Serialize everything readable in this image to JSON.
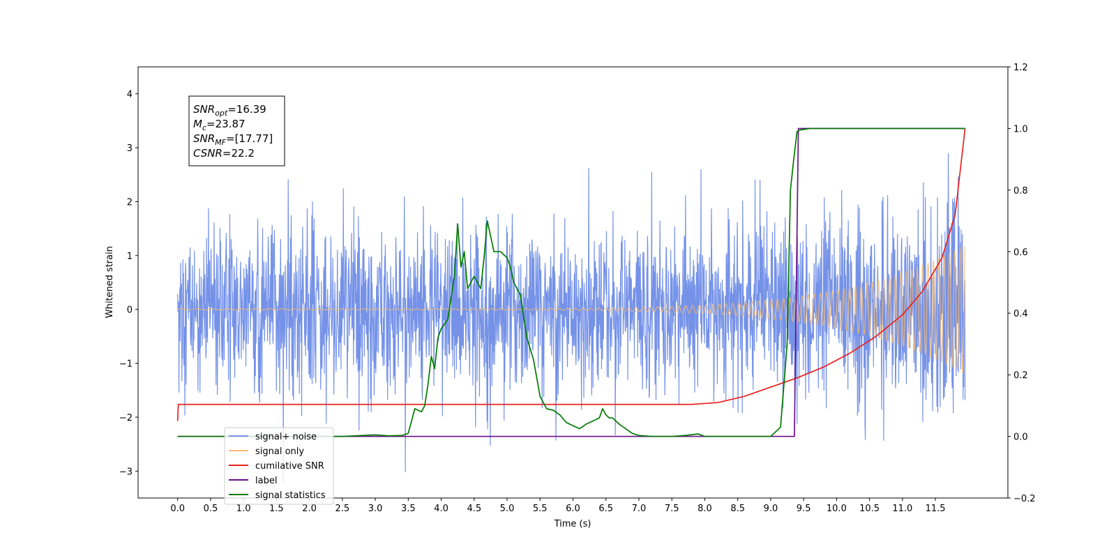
{
  "chart_data": {
    "type": "line",
    "xlabel": "Time (s)",
    "ylabel_left": "Whitened strain",
    "ylabel_right": "",
    "xlim": [
      -0.6,
      12.6
    ],
    "ylim_left": [
      -3.5,
      4.5
    ],
    "ylim_right": [
      -0.2,
      1.2
    ],
    "x_ticks": [
      "0.0",
      "0.5",
      "1.0",
      "1.5",
      "2.0",
      "2.5",
      "3.0",
      "3.5",
      "4.0",
      "4.5",
      "5.0",
      "5.5",
      "6.0",
      "6.5",
      "7.0",
      "7.5",
      "8.0",
      "8.5",
      "9.0",
      "9.5",
      "10.0",
      "10.5",
      "11.0",
      "11.5"
    ],
    "y_ticks_left": [
      "−3",
      "−2",
      "−1",
      "0",
      "1",
      "2",
      "3",
      "4"
    ],
    "y_ticks_right": [
      "−0.2",
      "0.0",
      "0.2",
      "0.4",
      "0.6",
      "0.8",
      "1.0",
      "1.2"
    ],
    "grid": false,
    "legend_position": "lower-left",
    "annotation": {
      "lines": [
        {
          "main": "SNR",
          "sub": "opt",
          "value": "=16.39"
        },
        {
          "main": "M",
          "sub": "c",
          "value": "=23.87"
        },
        {
          "main": "SNR",
          "sub": "MF",
          "value": "=[17.77]"
        },
        {
          "main": "CSNR",
          "sub": "",
          "value": "=22.2"
        }
      ]
    },
    "series": [
      {
        "name": "signal+ noise",
        "axis": "left",
        "color": "#7592e8",
        "style": "noise",
        "x_range": [
          0.0,
          11.95
        ],
        "std": 0.75,
        "chirp_growth_amplitude": 1.2
      },
      {
        "name": "signal only",
        "axis": "left",
        "color": "#f5b870",
        "style": "chirp",
        "x_range": [
          0.0,
          11.95
        ],
        "max_amplitude": 1.2
      },
      {
        "name": "cumilative SNR",
        "axis": "right",
        "color": "#e8211e",
        "x": [
          0.0,
          0.01,
          7.8,
          8.2,
          8.6,
          9.0,
          9.4,
          9.8,
          10.2,
          10.6,
          11.0,
          11.3,
          11.6,
          11.8,
          11.95
        ],
        "values": [
          0.05,
          0.104,
          0.104,
          0.11,
          0.13,
          0.16,
          0.19,
          0.225,
          0.27,
          0.325,
          0.395,
          0.47,
          0.58,
          0.72,
          1.0
        ]
      },
      {
        "name": "label",
        "axis": "right",
        "color": "#6a0f8a",
        "x": [
          0.0,
          9.36,
          9.42,
          11.95
        ],
        "values": [
          0.0,
          0.0,
          1.0,
          1.0
        ]
      },
      {
        "name": "signal statistics",
        "axis": "right",
        "color": "#007a00",
        "x": [
          0.0,
          0.1,
          0.2,
          0.3,
          0.5,
          1.0,
          1.5,
          2.0,
          2.5,
          2.8,
          3.0,
          3.2,
          3.4,
          3.5,
          3.55,
          3.6,
          3.65,
          3.7,
          3.75,
          3.8,
          3.85,
          3.9,
          3.95,
          4.0,
          4.1,
          4.2,
          4.25,
          4.3,
          4.35,
          4.4,
          4.45,
          4.5,
          4.6,
          4.65,
          4.7,
          4.75,
          4.8,
          4.9,
          5.0,
          5.05,
          5.1,
          5.2,
          5.3,
          5.4,
          5.5,
          5.6,
          5.7,
          5.8,
          5.9,
          6.0,
          6.1,
          6.2,
          6.3,
          6.4,
          6.45,
          6.5,
          6.55,
          6.6,
          6.7,
          6.8,
          6.9,
          7.0,
          7.2,
          7.5,
          7.7,
          7.9,
          8.0,
          8.5,
          9.0,
          9.15,
          9.25,
          9.3,
          9.35,
          9.4,
          9.45,
          9.6,
          10.0,
          11.0,
          11.95
        ],
        "values": [
          0.0,
          0.0,
          0.0,
          0.0,
          0.0,
          0.0,
          0.0,
          0.0,
          0.0,
          0.003,
          0.005,
          0.002,
          0.003,
          0.01,
          0.05,
          0.09,
          0.085,
          0.08,
          0.1,
          0.17,
          0.26,
          0.22,
          0.32,
          0.35,
          0.38,
          0.52,
          0.69,
          0.55,
          0.6,
          0.48,
          0.5,
          0.52,
          0.48,
          0.58,
          0.7,
          0.65,
          0.6,
          0.6,
          0.58,
          0.55,
          0.5,
          0.46,
          0.32,
          0.25,
          0.13,
          0.09,
          0.085,
          0.07,
          0.045,
          0.035,
          0.025,
          0.04,
          0.05,
          0.06,
          0.09,
          0.07,
          0.06,
          0.06,
          0.04,
          0.025,
          0.01,
          0.003,
          0.0,
          0.0,
          0.003,
          0.008,
          0.0,
          0.0,
          0.0,
          0.03,
          0.3,
          0.8,
          0.9,
          0.99,
          0.995,
          1.0,
          1.0,
          1.0,
          1.0
        ]
      }
    ]
  }
}
